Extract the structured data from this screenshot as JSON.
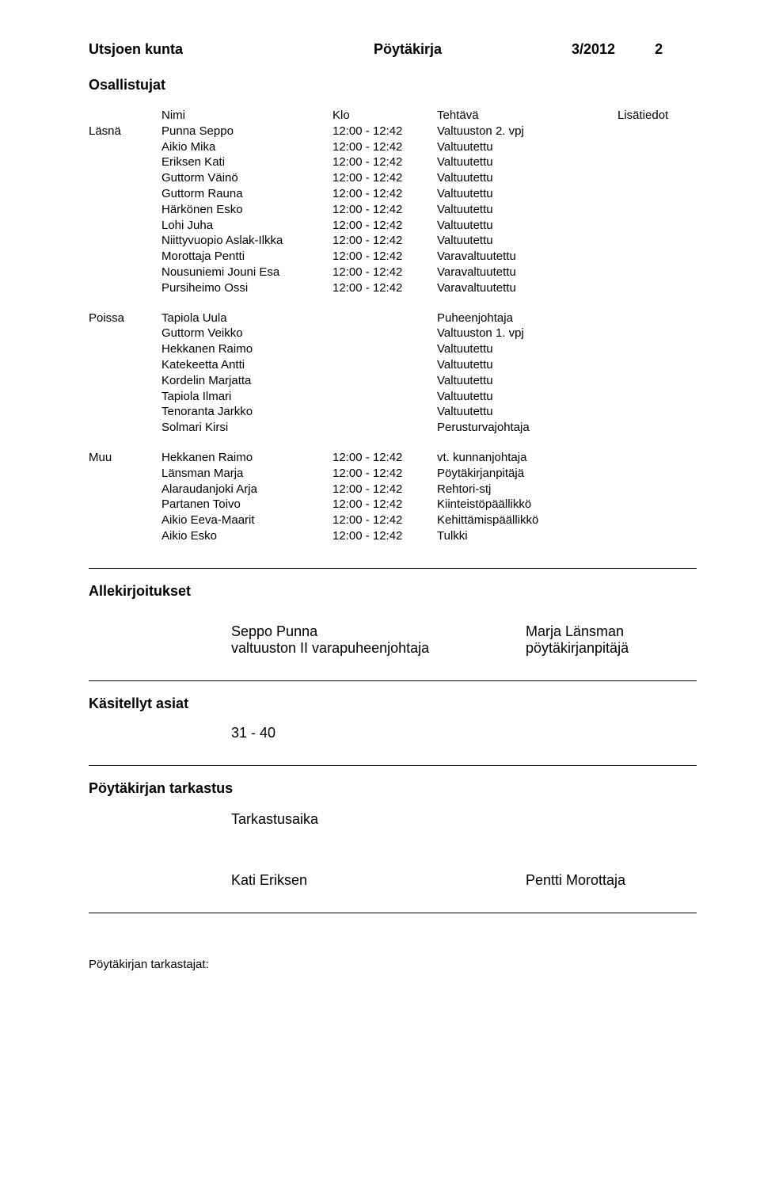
{
  "header": {
    "org": "Utsjoen kunta",
    "doc": "Pöytäkirja",
    "num": "3/2012",
    "page": "2"
  },
  "participants_title": "Osallistujat",
  "columns": {
    "name": "Nimi",
    "time": "Klo",
    "role": "Tehtävä",
    "extra": "Lisätiedot"
  },
  "present_label": "Läsnä",
  "present": [
    {
      "name": "Punna Seppo",
      "time": "12:00 - 12:42",
      "role": "Valtuuston 2. vpj"
    },
    {
      "name": "Aikio Mika",
      "time": "12:00 - 12:42",
      "role": "Valtuutettu"
    },
    {
      "name": "Eriksen Kati",
      "time": "12:00 - 12:42",
      "role": "Valtuutettu"
    },
    {
      "name": "Guttorm Väinö",
      "time": "12:00 - 12:42",
      "role": "Valtuutettu"
    },
    {
      "name": "Guttorm Rauna",
      "time": "12:00 - 12:42",
      "role": "Valtuutettu"
    },
    {
      "name": "Härkönen Esko",
      "time": "12:00 - 12:42",
      "role": "Valtuutettu"
    },
    {
      "name": "Lohi Juha",
      "time": "12:00 - 12:42",
      "role": "Valtuutettu"
    },
    {
      "name": "Niittyvuopio Aslak-Ilkka",
      "time": "12:00 - 12:42",
      "role": "Valtuutettu"
    },
    {
      "name": "Morottaja Pentti",
      "time": "12:00 - 12:42",
      "role": "Varavaltuutettu"
    },
    {
      "name": "Nousuniemi Jouni Esa",
      "time": "12:00 - 12:42",
      "role": "Varavaltuutettu"
    },
    {
      "name": "Pursiheimo Ossi",
      "time": "12:00 - 12:42",
      "role": "Varavaltuutettu"
    }
  ],
  "absent_label": "Poissa",
  "absent": [
    {
      "name": "Tapiola Uula",
      "role": "Puheenjohtaja"
    },
    {
      "name": "Guttorm Veikko",
      "role": "Valtuuston 1. vpj"
    },
    {
      "name": "Hekkanen Raimo",
      "role": "Valtuutettu"
    },
    {
      "name": "Katekeetta  Antti",
      "role": "Valtuutettu"
    },
    {
      "name": "Kordelin Marjatta",
      "role": "Valtuutettu"
    },
    {
      "name": "Tapiola Ilmari",
      "role": "Valtuutettu"
    },
    {
      "name": "Tenoranta Jarkko",
      "role": "Valtuutettu"
    },
    {
      "name": "Solmari Kirsi",
      "role": "Perusturvajohtaja"
    }
  ],
  "other_label": "Muu",
  "other": [
    {
      "name": "Hekkanen Raimo",
      "time": "12:00 - 12:42",
      "role": "vt. kunnanjohtaja"
    },
    {
      "name": "Länsman Marja",
      "time": "12:00 - 12:42",
      "role": "Pöytäkirjanpitäjä"
    },
    {
      "name": "Alaraudanjoki Arja",
      "time": "12:00 - 12:42",
      "role": "Rehtori-stj"
    },
    {
      "name": "Partanen Toivo",
      "time": "12:00 - 12:42",
      "role": "Kiinteistöpäällikkö"
    },
    {
      "name": "Aikio Eeva-Maarit",
      "time": "12:00 - 12:42",
      "role": "Kehittämispäällikkö"
    },
    {
      "name": "Aikio Esko",
      "time": "12:00 - 12:42",
      "role": "Tulkki"
    }
  ],
  "signatures": {
    "title": "Allekirjoitukset",
    "left_name": "Seppo Punna",
    "left_title": "valtuuston II varapuheenjohtaja",
    "right_name": "Marja Länsman",
    "right_title": "pöytäkirjanpitäjä"
  },
  "processed": {
    "title": "Käsitellyt asiat",
    "range": "31 - 40"
  },
  "review": {
    "title": "Pöytäkirjan tarkastus",
    "time_label": "Tarkastusaika",
    "left": "Kati Eriksen",
    "right": "Pentti Morottaja"
  },
  "footer": "Pöytäkirjan tarkastajat:"
}
